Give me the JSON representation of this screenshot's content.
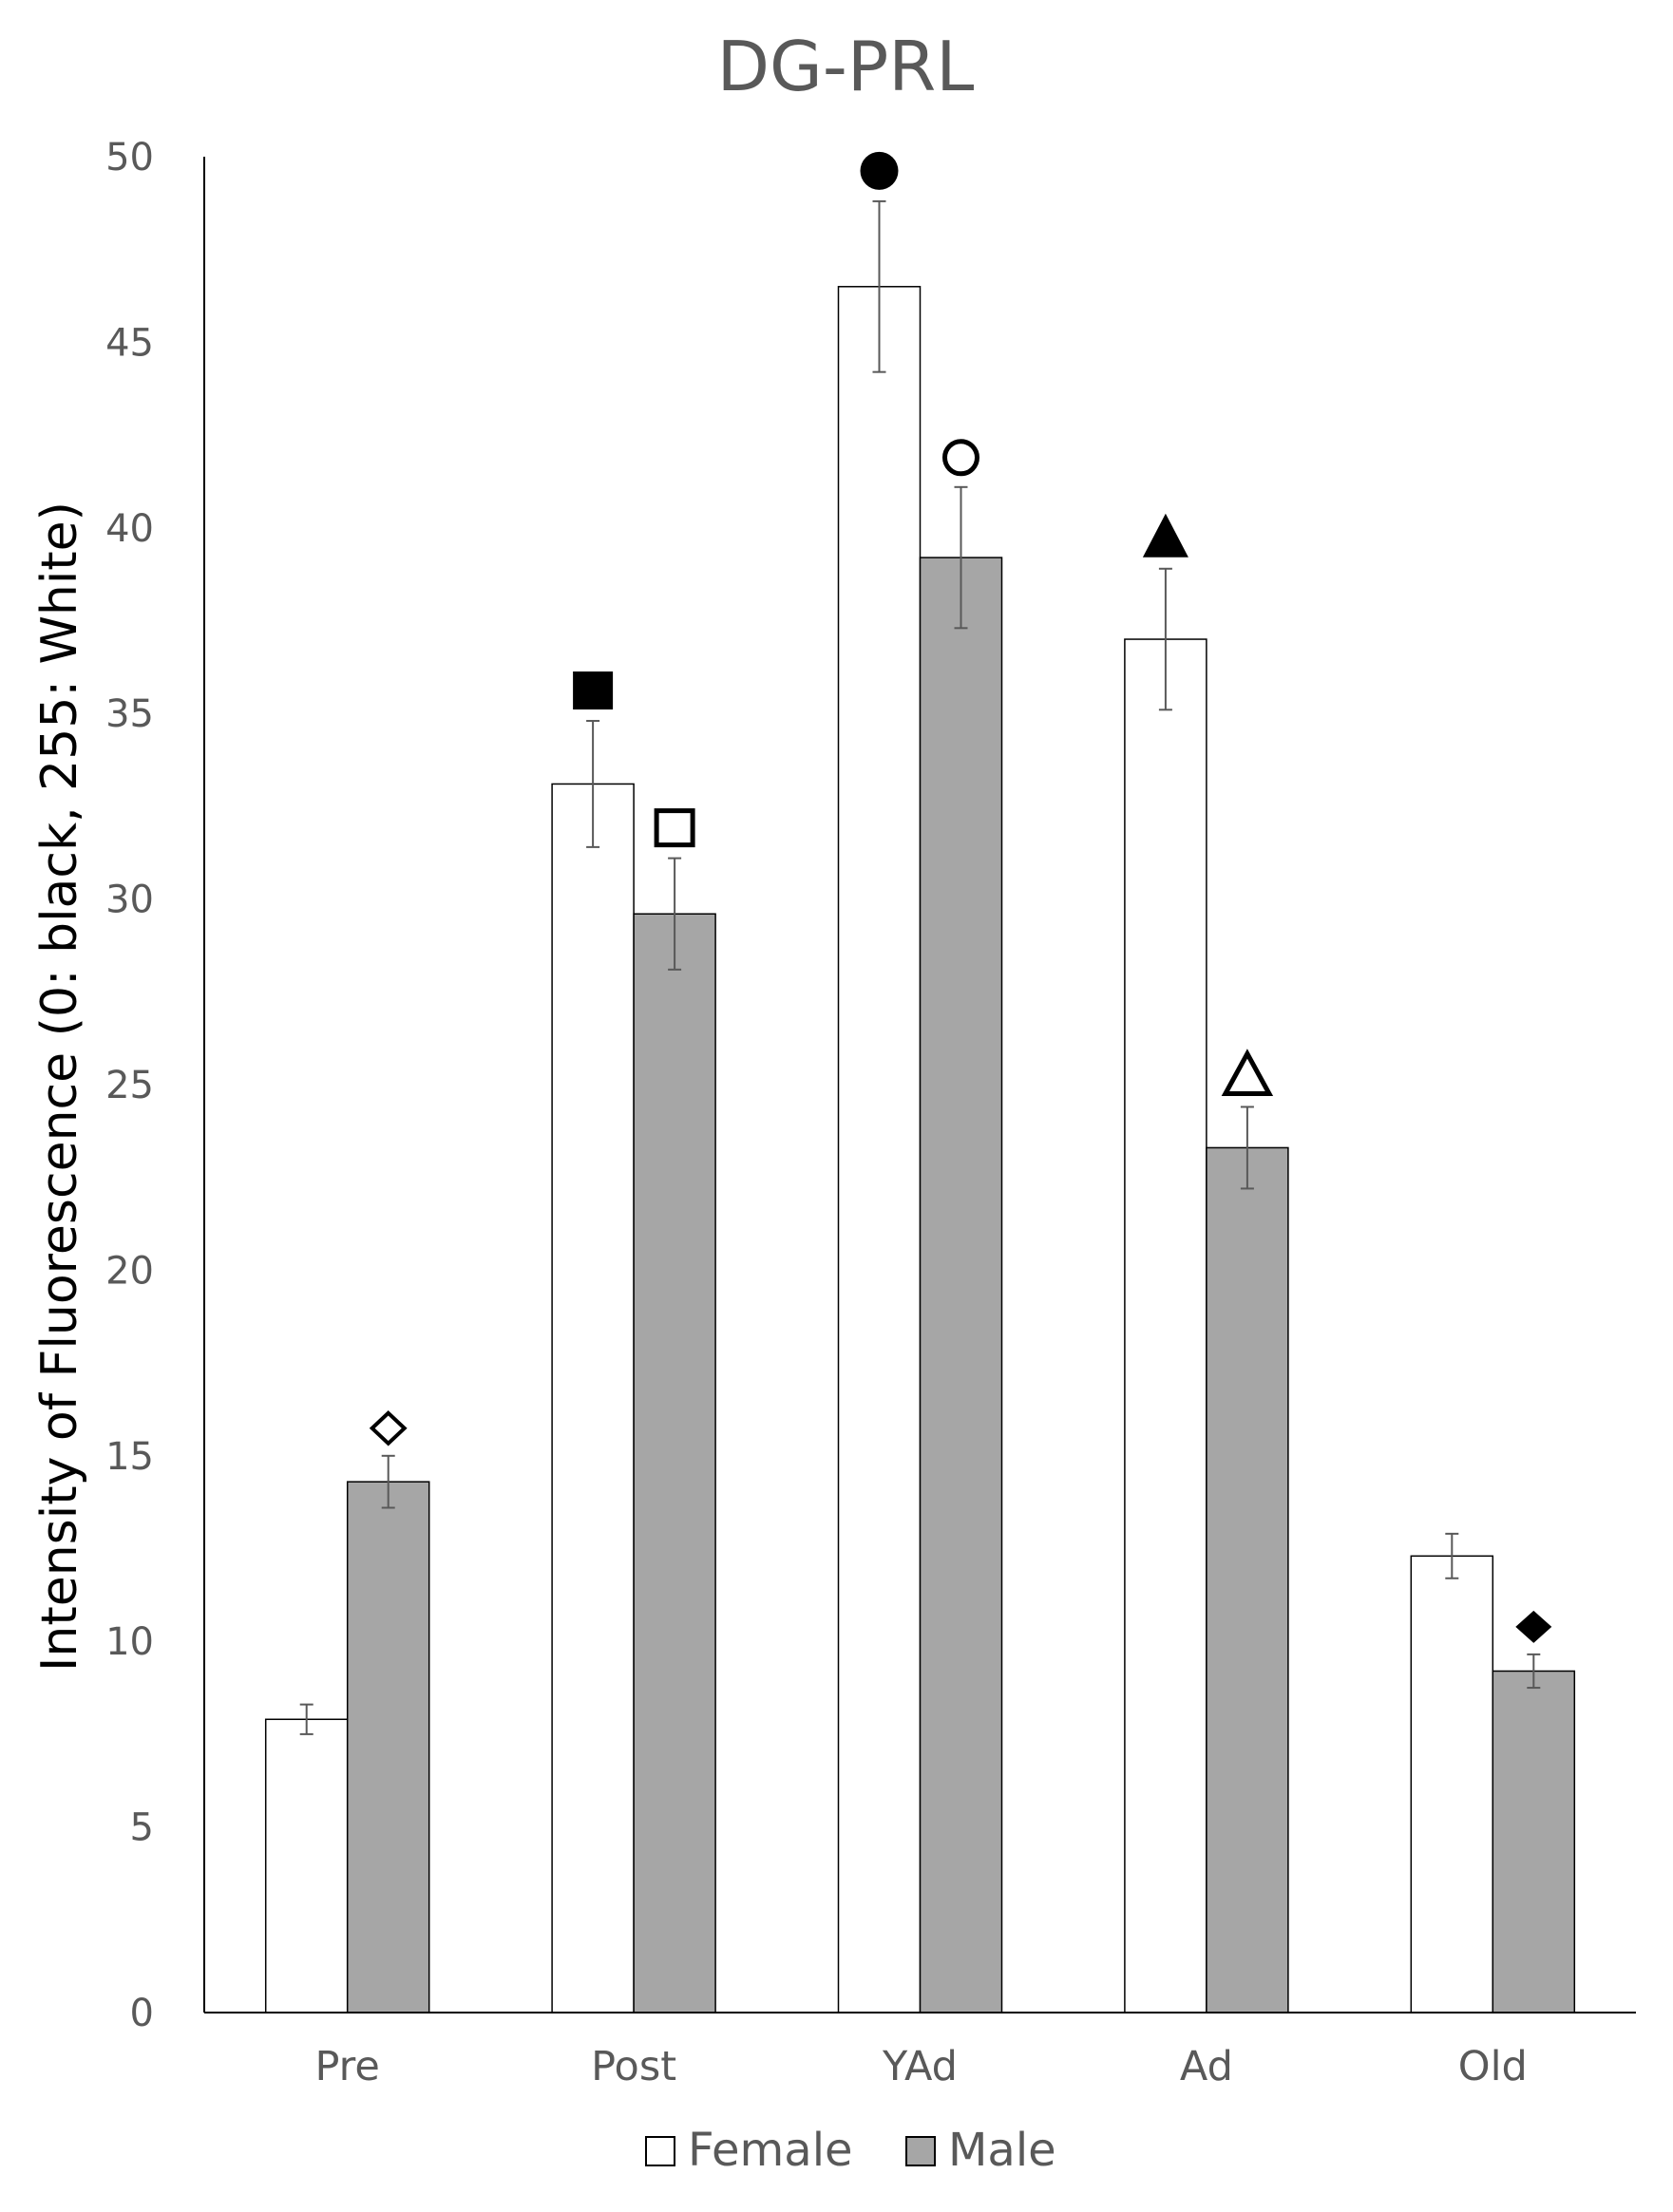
{
  "chart_data": {
    "type": "bar",
    "title": "DG-PRL",
    "xlabel": "",
    "ylabel": "Intensity of Fluorescence (0: black, 255: White)",
    "ylim": [
      0,
      50
    ],
    "yticks": [
      0,
      5,
      10,
      15,
      20,
      25,
      30,
      35,
      40,
      45,
      50
    ],
    "grid": false,
    "legend_position": "bottom",
    "categories": [
      "Pre",
      "Post",
      "YAd",
      "Ad",
      "Old"
    ],
    "series": [
      {
        "name": "Female",
        "color": "#ffffff",
        "values": [
          7.9,
          33.1,
          46.5,
          37.0,
          12.3
        ],
        "errors": [
          0.4,
          1.7,
          2.3,
          1.9,
          0.6
        ],
        "markers": [
          null,
          "filled-square",
          "filled-circle",
          "filled-triangle",
          null
        ]
      },
      {
        "name": "Male",
        "color": "#a6a6a6",
        "values": [
          14.3,
          29.6,
          39.2,
          23.3,
          9.2
        ],
        "errors": [
          0.7,
          1.5,
          1.9,
          1.1,
          0.45
        ],
        "markers": [
          "open-diamond",
          "open-square",
          "open-circle",
          "open-triangle",
          "filled-diamond"
        ]
      }
    ]
  }
}
